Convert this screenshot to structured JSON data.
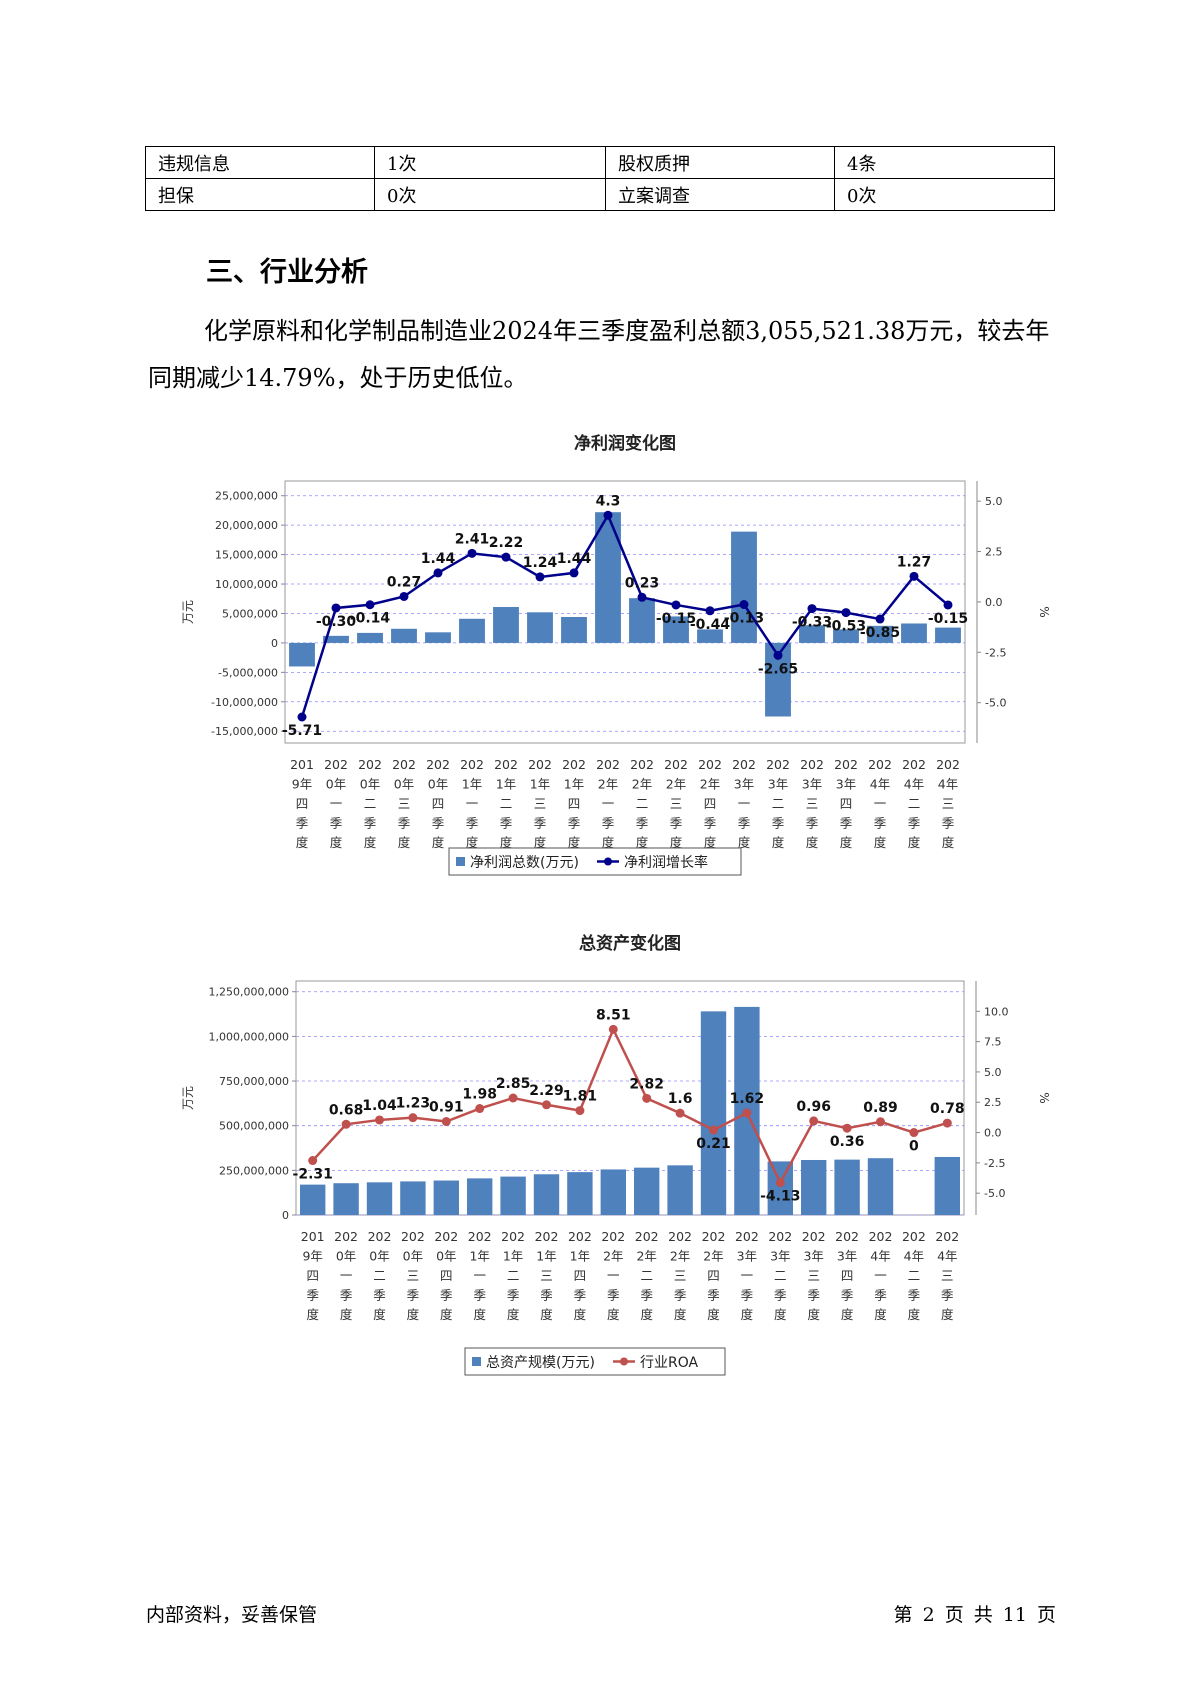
{
  "info_table": {
    "rows": [
      [
        "违规信息",
        "1次",
        "股权质押",
        "4条"
      ],
      [
        "担保",
        "0次",
        "立案调查",
        "0次"
      ]
    ]
  },
  "section_title": "三、行业分析",
  "paragraph": "化学原料和化学制品制造业2024年三季度盈利总额3,055,521.38万元，较去年同期减少14.79%，处于历史低位。",
  "chart_data": [
    {
      "type": "bar+line",
      "title": "净利润变化图",
      "categories": [
        "2019年四季度",
        "2020年一季度",
        "2020年二季度",
        "2020年三季度",
        "2020年四季度",
        "2021年一季度",
        "2021年二季度",
        "2021年三季度",
        "2021年四季度",
        "2022年一季度",
        "2022年二季度",
        "2022年三季度",
        "2022年四季度",
        "2023年一季度",
        "2023年二季度",
        "2023年三季度",
        "2023年四季度",
        "2024年一季度",
        "2024年二季度",
        "2024年三季度"
      ],
      "ylabel": "万元",
      "y2label": "%",
      "ylim": [
        -17000000,
        27500000
      ],
      "y2lim": [
        -7.0,
        6.0
      ],
      "yticks": [
        "25,000,000",
        "20,000,000",
        "15,000,000",
        "10,000,000",
        "5,000,000",
        "0",
        "-5,000,000",
        "-10,000,000",
        "-15,000,000"
      ],
      "y2ticks": [
        "5.0",
        "2.5",
        "0.0",
        "-2.5",
        "-5.0"
      ],
      "series": [
        {
          "name": "净利润总数(万元)",
          "type": "bar",
          "axis": "left",
          "color": "#4f81bd",
          "values": [
            -4000000,
            1200000,
            1700000,
            2400000,
            1800000,
            4100000,
            6100000,
            5200000,
            4400000,
            22200000,
            7600000,
            4500000,
            2300000,
            18900000,
            -12500000,
            3000000,
            2300000,
            2900000,
            3300000,
            2600000
          ]
        },
        {
          "name": "净利润增长率",
          "type": "line",
          "axis": "right",
          "color": "#00008b",
          "values": [
            -5.71,
            -0.3,
            -0.14,
            0.27,
            1.44,
            2.41,
            2.22,
            1.24,
            1.44,
            4.3,
            0.23,
            -0.15,
            -0.44,
            -0.13,
            -2.65,
            -0.33,
            -0.53,
            -0.85,
            1.27,
            -0.15
          ],
          "labels": [
            "-5.71",
            "-0.30",
            "-0.14",
            "0.27",
            "1.44",
            "2.41",
            "2.22",
            "1.24",
            "1.44",
            "4.3",
            "0.23",
            "-0.15",
            "-0.44",
            "-0.13",
            "-2.65",
            "-0.33",
            "-0.53",
            "-0.85",
            "1.27",
            "-0.15"
          ]
        }
      ],
      "grid": true,
      "legend": "bottom"
    },
    {
      "type": "bar+line",
      "title": "总资产变化图",
      "categories": [
        "2019年四季度",
        "2020年一季度",
        "2020年二季度",
        "2020年三季度",
        "2020年四季度",
        "2021年一季度",
        "2021年二季度",
        "2021年三季度",
        "2021年四季度",
        "2022年一季度",
        "2022年二季度",
        "2022年三季度",
        "2022年四季度",
        "2023年一季度",
        "2023年二季度",
        "2023年三季度",
        "2023年四季度",
        "2024年一季度",
        "2024年二季度",
        "2024年三季度"
      ],
      "ylabel": "万元",
      "y2label": "%",
      "ylim": [
        0,
        1310000000
      ],
      "y2lim": [
        -6.8,
        12.5
      ],
      "yticks": [
        "1,250,000,000",
        "1,000,000,000",
        "750,000,000",
        "500,000,000",
        "250,000,000",
        "0"
      ],
      "y2ticks": [
        "10.0",
        "7.5",
        "5.0",
        "2.5",
        "0.0",
        "-2.5",
        "-5.0"
      ],
      "series": [
        {
          "name": "总资产规模(万元)",
          "type": "bar",
          "axis": "left",
          "color": "#4f81bd",
          "values": [
            170000000,
            178000000,
            183000000,
            188000000,
            193000000,
            205000000,
            215000000,
            228000000,
            240000000,
            255000000,
            265000000,
            278000000,
            1140000000,
            1165000000,
            300000000,
            308000000,
            310000000,
            318000000,
            0,
            325000000
          ]
        },
        {
          "name": "行业ROA",
          "type": "line",
          "axis": "right",
          "color": "#c0504d",
          "values": [
            -2.31,
            0.68,
            1.04,
            1.23,
            0.91,
            1.98,
            2.85,
            2.29,
            1.81,
            8.51,
            2.82,
            1.6,
            0.21,
            1.62,
            -4.13,
            0.96,
            0.36,
            0.89,
            0,
            0.78
          ],
          "labels": [
            "-2.31",
            "0.68",
            "1.04",
            "1.23",
            "0.91",
            "1.98",
            "2.85",
            "2.29",
            "1.81",
            "8.51",
            "2.82",
            "1.6",
            "0.21",
            "1.62",
            "-4.13",
            "0.96",
            "0.36",
            "0.89",
            "0",
            "0.78"
          ]
        }
      ],
      "grid": true,
      "legend": "bottom"
    }
  ],
  "footer": {
    "left": "内部资料，妥善保管",
    "right": "第 2 页  共 11 页"
  }
}
